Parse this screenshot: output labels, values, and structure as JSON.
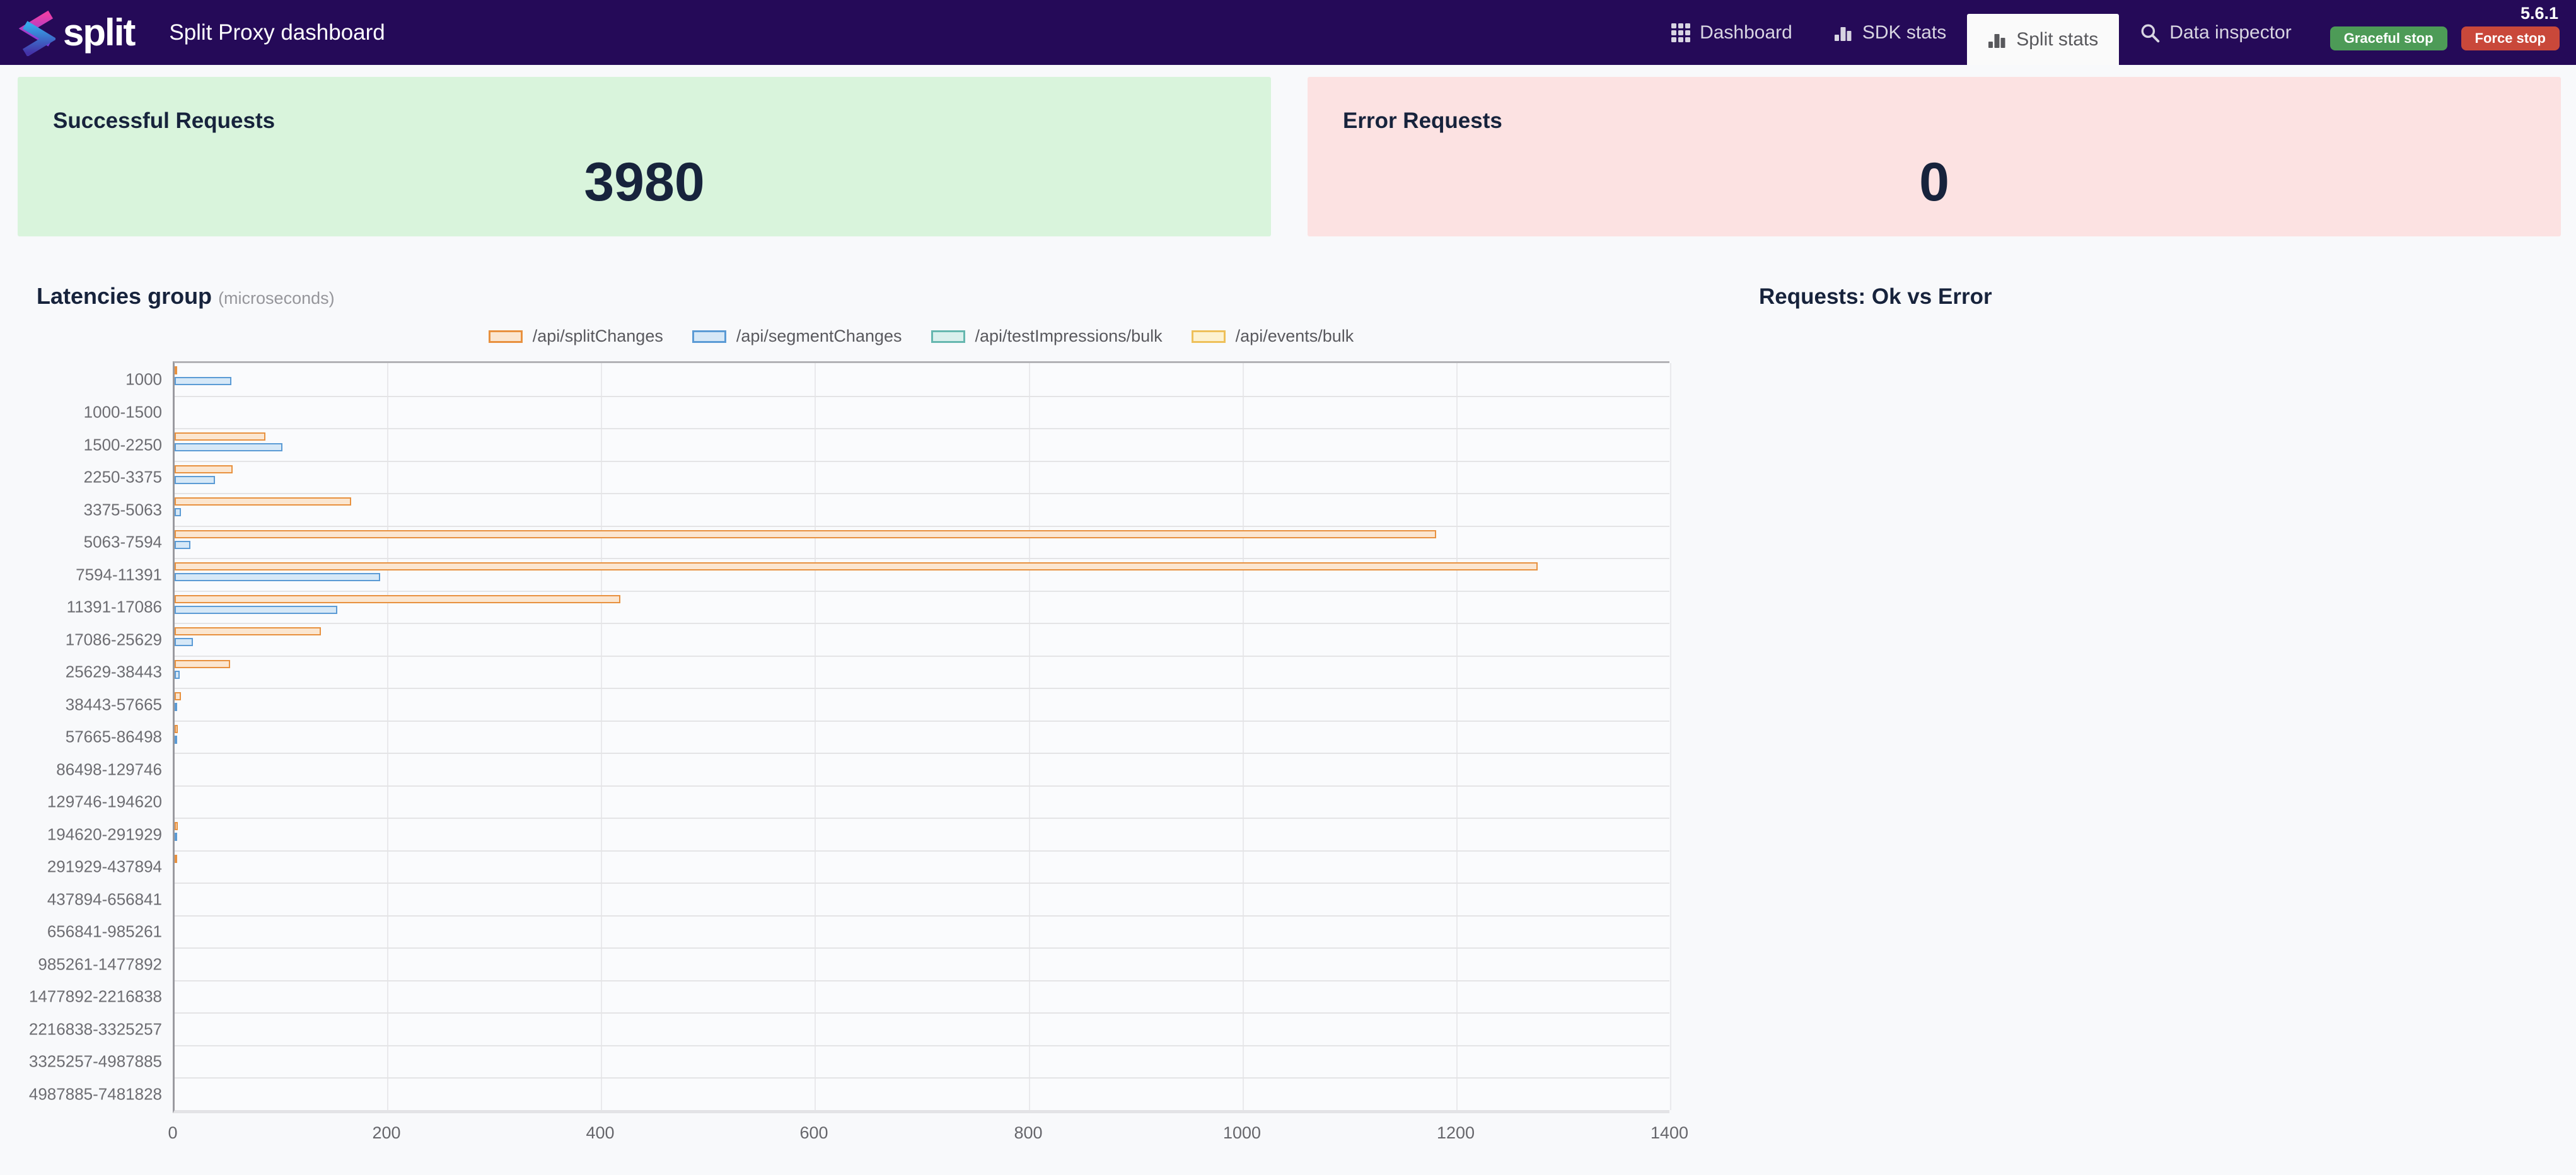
{
  "header": {
    "brand": "split",
    "title": "Split Proxy dashboard",
    "version": "5.6.1",
    "nav": [
      {
        "label": "Dashboard",
        "icon": "grid-icon",
        "active": false
      },
      {
        "label": "SDK stats",
        "icon": "bar-chart-icon",
        "active": false
      },
      {
        "label": "Split stats",
        "icon": "bar-chart-icon",
        "active": true
      },
      {
        "label": "Data inspector",
        "icon": "search-icon",
        "active": false
      }
    ],
    "buttons": [
      {
        "label": "Graceful stop",
        "color": "#4d9b57"
      },
      {
        "label": "Force stop",
        "color": "#c9483a"
      }
    ]
  },
  "cards": {
    "success": {
      "title": "Successful Requests",
      "value": "3980",
      "bg": "#d9f4dc"
    },
    "error": {
      "title": "Error Requests",
      "value": "0",
      "bg": "#fce2e2"
    }
  },
  "latency_section": {
    "title": "Latencies group",
    "subtitle": "(microseconds)"
  },
  "requests_section": {
    "title": "Requests: Ok vs Error"
  },
  "chart_data": {
    "type": "bar",
    "orientation": "horizontal",
    "title": "Latencies group (microseconds)",
    "xlabel": "",
    "ylabel": "",
    "xlim": [
      0,
      1400
    ],
    "xticks": [
      0,
      200,
      400,
      600,
      800,
      1000,
      1200,
      1400
    ],
    "grid": true,
    "legend_position": "top-center",
    "categories": [
      "1000",
      "1000-1500",
      "1500-2250",
      "2250-3375",
      "3375-5063",
      "5063-7594",
      "7594-11391",
      "11391-17086",
      "17086-25629",
      "25629-38443",
      "38443-57665",
      "57665-86498",
      "86498-129746",
      "129746-194620",
      "194620-291929",
      "291929-437894",
      "437894-656841",
      "656841-985261",
      "985261-1477892",
      "1477892-2216838",
      "2216838-3325257",
      "3325257-4987885",
      "4987885-7481828"
    ],
    "series": [
      {
        "name": "/api/splitChanges",
        "border": "#e8913f",
        "fill": "#fbe6d0",
        "values": [
          2,
          0,
          85,
          54,
          165,
          1180,
          1275,
          417,
          137,
          52,
          6,
          3,
          0,
          0,
          3,
          2,
          0,
          0,
          0,
          0,
          0,
          0,
          0
        ]
      },
      {
        "name": "/api/segmentChanges",
        "border": "#5b9bd5",
        "fill": "#d6e8f7",
        "values": [
          53,
          0,
          101,
          38,
          6,
          15,
          192,
          152,
          17,
          5,
          1,
          1,
          0,
          0,
          1,
          0,
          0,
          0,
          0,
          0,
          0,
          0,
          0
        ]
      },
      {
        "name": "/api/testImpressions/bulk",
        "border": "#66b7af",
        "fill": "#daf0ed",
        "values": [
          0,
          0,
          0,
          0,
          0,
          0,
          0,
          0,
          0,
          0,
          0,
          0,
          0,
          0,
          0,
          0,
          0,
          0,
          0,
          0,
          0,
          0,
          0
        ]
      },
      {
        "name": "/api/events/bulk",
        "border": "#eec05a",
        "fill": "#fdf2d1",
        "values": [
          0,
          0,
          0,
          0,
          0,
          0,
          0,
          0,
          0,
          0,
          0,
          0,
          0,
          0,
          0,
          0,
          0,
          0,
          0,
          0,
          0,
          0,
          0
        ]
      }
    ]
  }
}
